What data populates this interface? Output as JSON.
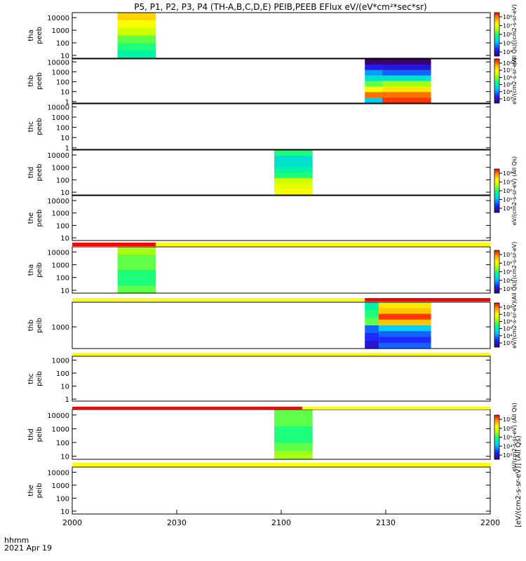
{
  "title": "P5, P1, P2, P3, P4 (TH-A,B,C,D,E) PEIB,PEEB EFlux eV/(eV*cm²*sec*sr)",
  "colors": {
    "flag_red": "#ff0000",
    "flag_yellow": "#ffff00",
    "flag_black": "#000000",
    "spectrogram_palette": [
      "#3a0072",
      "#2020ff",
      "#00c8ff",
      "#00ff90",
      "#c0ff00",
      "#ffff00",
      "#ffa000",
      "#ff0000"
    ]
  },
  "x_axis": {
    "label_line1": "hhmm",
    "label_line2": "2021 Apr 19",
    "ticks": [
      "2000",
      "2030",
      "2100",
      "2130",
      "2200"
    ],
    "tick_values": [
      0,
      30,
      60,
      90,
      120
    ]
  },
  "colorbars": [
    {
      "panel": "tha-peeb",
      "ticks": [
        "10⁸",
        "10⁷",
        "10⁶",
        "10⁵",
        "10⁴"
      ],
      "label": "(All Qs)[(cm2-s-sr-eV)"
    },
    {
      "panel": "thb-peeb",
      "ticks": [
        "10⁸",
        "10⁷",
        "10⁶",
        "10⁵",
        "10⁴",
        "10³"
      ],
      "label": "eV/(cm2-s-sr-eV)"
    },
    {
      "panel": "thd-peeb",
      "ticks": [
        "10⁸",
        "10⁷",
        "10⁶",
        "10⁵",
        "10⁴"
      ],
      "label": "eV/(cm2-s-sr-eV) (All Qs)"
    },
    {
      "panel": "tha-peib",
      "ticks": [
        "10⁷",
        "10⁶",
        "10⁵",
        "10⁴",
        "10³"
      ],
      "label": "(All Qs)[(cm2-s-sr-eV)"
    },
    {
      "panel": "thb-peib",
      "ticks": [
        "10⁸",
        "10⁷",
        "10⁶",
        "10⁵",
        "10⁴",
        "10³"
      ],
      "label": "eV/(cm2-s-sr-eV)"
    },
    {
      "panel": "thd-peib",
      "ticks": [
        "10⁷",
        "10⁶",
        "10⁵",
        "10⁴",
        "10³"
      ],
      "label": "eV/(cm2-s-sr-eV) (All Qs)"
    }
  ],
  "colorbar_side_label": "[eV/(cm2-s-sr-eV)] (All Qs)",
  "chart_data": {
    "type": "heatmap",
    "title": "P5, P1, P2, P3, P4 (TH-A,B,C,D,E) PEIB,PEEB EFlux eV/(eV*cm²*sec*sr)",
    "x_units": "minutes after 20:00 UT, 2021 Apr 19",
    "xlim": [
      0,
      120
    ],
    "panels": [
      {
        "key": "tha_peeb",
        "probe": "tha",
        "product": "peeb",
        "yticks": [
          "10000",
          "1000",
          "100",
          "10"
        ],
        "ytick_values": [
          10000,
          1000,
          100,
          10
        ],
        "ylim": [
          6,
          25000
        ],
        "data_blocks": [
          {
            "x_start": 13,
            "x_end": 24,
            "profile": [
              0.78,
              0.7,
              0.6,
              0.5,
              0.45,
              0.4
            ]
          }
        ]
      },
      {
        "key": "thb_peeb",
        "probe": "thb",
        "product": "peeb",
        "yticks": [
          "10000",
          "1000",
          "100",
          "10",
          "1"
        ],
        "ytick_values": [
          10000,
          1000,
          100,
          10,
          1
        ],
        "ylim": [
          0.7,
          20000
        ],
        "data_blocks": [
          {
            "x_start": 84,
            "x_end": 89,
            "profile": [
              0.0,
              0.12,
              0.25,
              0.35,
              0.5,
              0.7,
              0.9,
              0.3
            ]
          },
          {
            "x_start": 89,
            "x_end": 103,
            "profile": [
              0.0,
              0.1,
              0.2,
              0.35,
              0.55,
              0.75,
              0.9,
              0.95
            ]
          }
        ]
      },
      {
        "key": "thc_peeb",
        "probe": "thc",
        "product": "peeb",
        "yticks": [
          "10000",
          "1000",
          "100",
          "10",
          "1"
        ],
        "ytick_values": [
          10000,
          1000,
          100,
          10,
          1
        ],
        "ylim": [
          0.7,
          20000
        ],
        "data_blocks": []
      },
      {
        "key": "thd_peeb",
        "probe": "thd",
        "product": "peeb",
        "yticks": [
          "10000",
          "1000",
          "100",
          "10"
        ],
        "ytick_values": [
          10000,
          1000,
          100,
          10
        ],
        "ylim": [
          6,
          25000
        ],
        "data_blocks": [
          {
            "x_start": 58,
            "x_end": 69,
            "profile": [
              0.45,
              0.35,
              0.35,
              0.4,
              0.45,
              0.6,
              0.65,
              0.7
            ]
          }
        ]
      },
      {
        "key": "the_peeb",
        "probe": "the",
        "product": "peeb",
        "yticks": [
          "10000",
          "1000",
          "100",
          "10"
        ],
        "ytick_values": [
          10000,
          1000,
          100,
          10
        ],
        "ylim": [
          6,
          25000
        ],
        "data_blocks": []
      },
      {
        "key": "tha_peib",
        "probe": "tha",
        "product": "peib",
        "yticks": [
          "10000",
          "1000",
          "100",
          "10"
        ],
        "ytick_values": [
          10000,
          1000,
          100,
          10
        ],
        "ylim": [
          6,
          25000
        ],
        "data_blocks": [
          {
            "x_start": 13,
            "x_end": 24,
            "profile": [
              0.55,
              0.5,
              0.5,
              0.45,
              0.45,
              0.5
            ]
          }
        ]
      },
      {
        "key": "thb_peib",
        "probe": "thb",
        "product": "peib",
        "yticks": [
          "1000"
        ],
        "ytick_values": [
          1000
        ],
        "ylim": [
          50,
          30000
        ],
        "data_blocks": [
          {
            "x_start": 84,
            "x_end": 88,
            "profile": [
              0.4,
              0.45,
              0.5,
              0.2,
              0.15,
              0.1
            ]
          },
          {
            "x_start": 88,
            "x_end": 103,
            "profile": [
              0.75,
              0.8,
              0.95,
              0.8,
              0.3,
              0.2,
              0.15,
              0.2
            ]
          }
        ]
      },
      {
        "key": "thc_peib",
        "probe": "thc",
        "product": "peib",
        "yticks": [
          "1000",
          "100",
          "10",
          "1"
        ],
        "ytick_values": [
          1000,
          100,
          10,
          1
        ],
        "ylim": [
          0.7,
          2000
        ],
        "data_blocks": []
      },
      {
        "key": "thd_peib",
        "probe": "thd",
        "product": "peib",
        "yticks": [
          "10000",
          "1000",
          "100",
          "10"
        ],
        "ytick_values": [
          10000,
          1000,
          100,
          10
        ],
        "ylim": [
          6,
          25000
        ],
        "data_blocks": [
          {
            "x_start": 58,
            "x_end": 69,
            "profile": [
              0.5,
              0.5,
              0.45,
              0.45,
              0.5,
              0.55
            ]
          }
        ]
      },
      {
        "key": "the_peib",
        "probe": "the",
        "product": "peib",
        "yticks": [
          "10000",
          "1000",
          "100",
          "10"
        ],
        "ytick_values": [
          10000,
          1000,
          100,
          10
        ],
        "ylim": [
          6,
          25000
        ],
        "data_blocks": []
      }
    ],
    "flag_bars": [
      {
        "segments": [
          {
            "x_start": 0,
            "x_end": 24,
            "color": "red"
          },
          {
            "x_start": 24,
            "x_end": 120,
            "color": "yellow"
          }
        ]
      },
      {
        "segments": [
          {
            "x_start": 0,
            "x_end": 84,
            "color": "yellow"
          },
          {
            "x_start": 84,
            "x_end": 120,
            "color": "red"
          }
        ]
      },
      {
        "segments": [
          {
            "x_start": 0,
            "x_end": 120,
            "color": "yellow"
          }
        ]
      },
      {
        "segments": [
          {
            "x_start": 0,
            "x_end": 66,
            "color": "red"
          },
          {
            "x_start": 66,
            "x_end": 120,
            "color": "yellow"
          }
        ]
      },
      {
        "segments": [
          {
            "x_start": 0,
            "x_end": 120,
            "color": "yellow"
          }
        ]
      }
    ]
  }
}
